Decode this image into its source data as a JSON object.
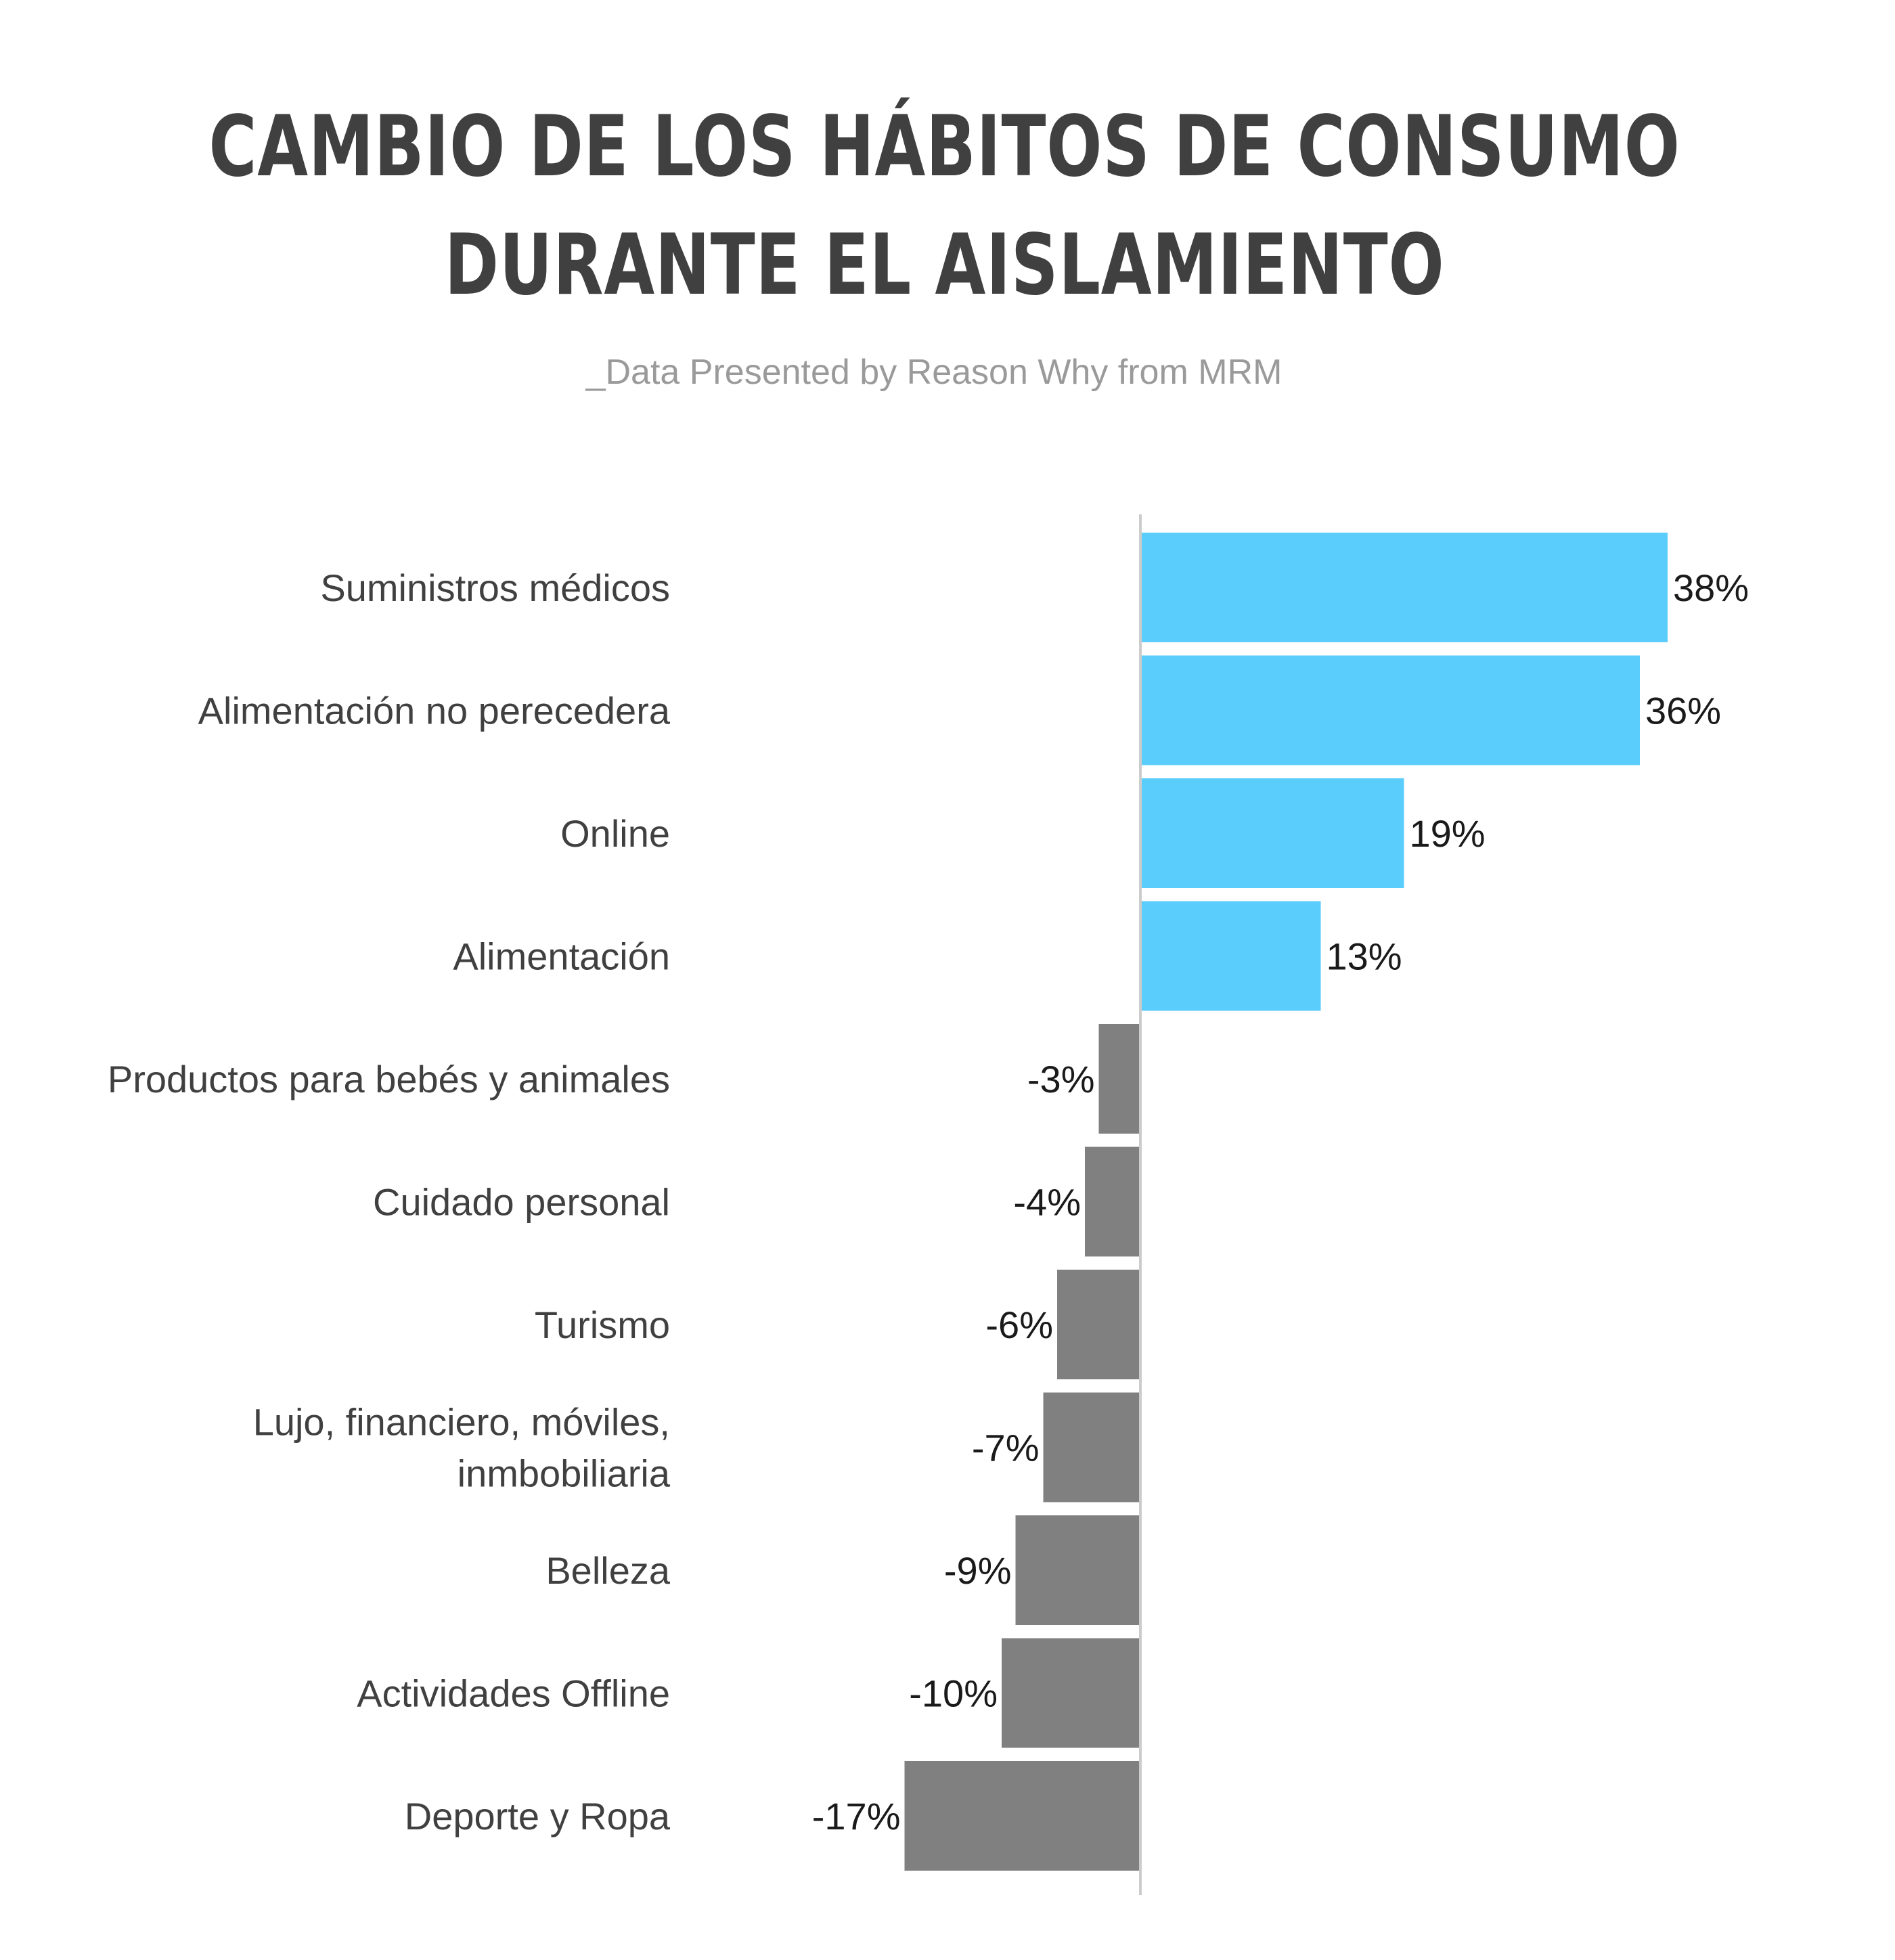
{
  "title_lines": [
    "CAMBIO DE LOS HÁBITOS DE CONSUMO",
    "DURANTE EL AISLAMIENTO"
  ],
  "subtitle": "_Data Presented by Reason Why from MRM",
  "colors": {
    "positive": "#5bcdfc",
    "negative": "#808080",
    "axis": "#cccccc"
  },
  "chart_data": {
    "type": "bar",
    "orientation": "horizontal",
    "categories": [
      "Suministros médicos",
      "Alimentación no perecedera",
      "Online",
      "Alimentación",
      "Productos para bebés y animales",
      "Cuidado personal",
      "Turismo",
      [
        "Lujo, financiero, móviles,",
        "inmbobiliaria"
      ],
      "Belleza",
      "Actividades Offline",
      "Deporte y Ropa"
    ],
    "values": [
      38,
      36,
      19,
      13,
      -3,
      -4,
      -6,
      -7,
      -9,
      -10,
      -17
    ],
    "value_labels": [
      "38%",
      "36%",
      "19%",
      "13%",
      "-3%",
      "-4%",
      "-6%",
      "-7%",
      "-9%",
      "-10%",
      "-17%"
    ],
    "xlim": [
      -17,
      38
    ],
    "grid": false,
    "legend": "none"
  }
}
